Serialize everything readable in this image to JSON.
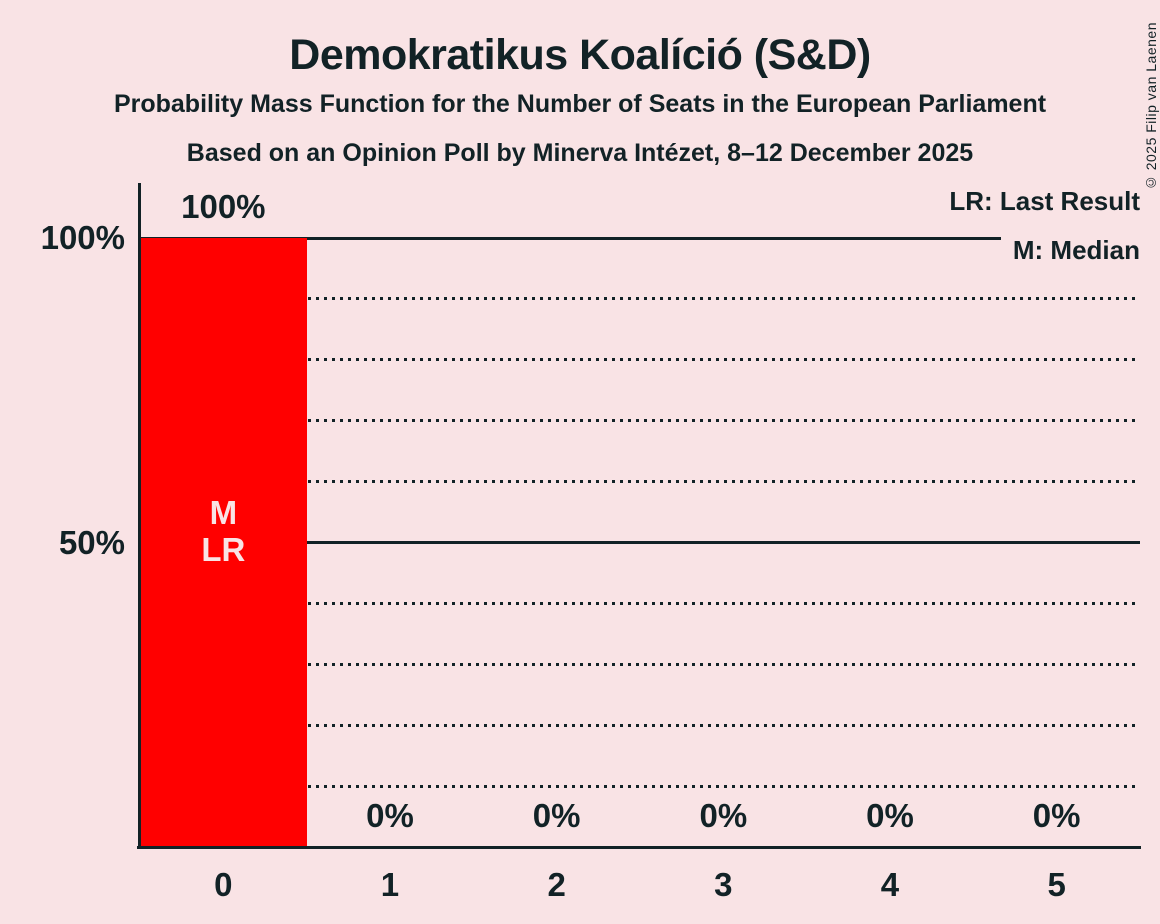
{
  "header": {
    "title": "Demokratikus Koalíció (S&D)",
    "subtitle": "Probability Mass Function for the Number of Seats in the European Parliament",
    "poll_line": "Based on an Opinion Poll by Minerva Intézet, 8–12 December 2025"
  },
  "legend": {
    "last_result": "LR: Last Result",
    "median": "M: Median"
  },
  "copyright": "© 2025 Filip van Laenen",
  "colors": {
    "background": "#f9e3e5",
    "bar": "#ff0000",
    "text": "#122226",
    "bar_label": "#f9e3e5"
  },
  "chart_data": {
    "type": "bar",
    "title": "Demokratikus Koalíció (S&D)",
    "subtitle": "Probability Mass Function for the Number of Seats in the European Parliament",
    "source_line": "Based on an Opinion Poll by Minerva Intézet, 8–12 December 2025",
    "categories": [
      "0",
      "1",
      "2",
      "3",
      "4",
      "5"
    ],
    "values": [
      100,
      0,
      0,
      0,
      0,
      0
    ],
    "value_labels": [
      "100%",
      "0%",
      "0%",
      "0%",
      "0%",
      "0%"
    ],
    "bar_annotations": [
      [
        "M",
        "LR"
      ],
      [],
      [],
      [],
      [],
      []
    ],
    "median_seats": 0,
    "last_result_seats": 0,
    "xlabel": "",
    "ylabel": "",
    "y_axis": {
      "range": [
        0,
        100
      ],
      "ticks": [
        {
          "value": 100,
          "label": "100%"
        },
        {
          "value": 50,
          "label": "50%"
        }
      ],
      "solid_gridlines": [
        100,
        50
      ],
      "dotted_gridlines": [
        90,
        80,
        70,
        60,
        40,
        30,
        20,
        10
      ]
    },
    "legend_entries": [
      "LR: Last Result",
      "M: Median"
    ],
    "legend_position": "top-right",
    "grid": true
  }
}
